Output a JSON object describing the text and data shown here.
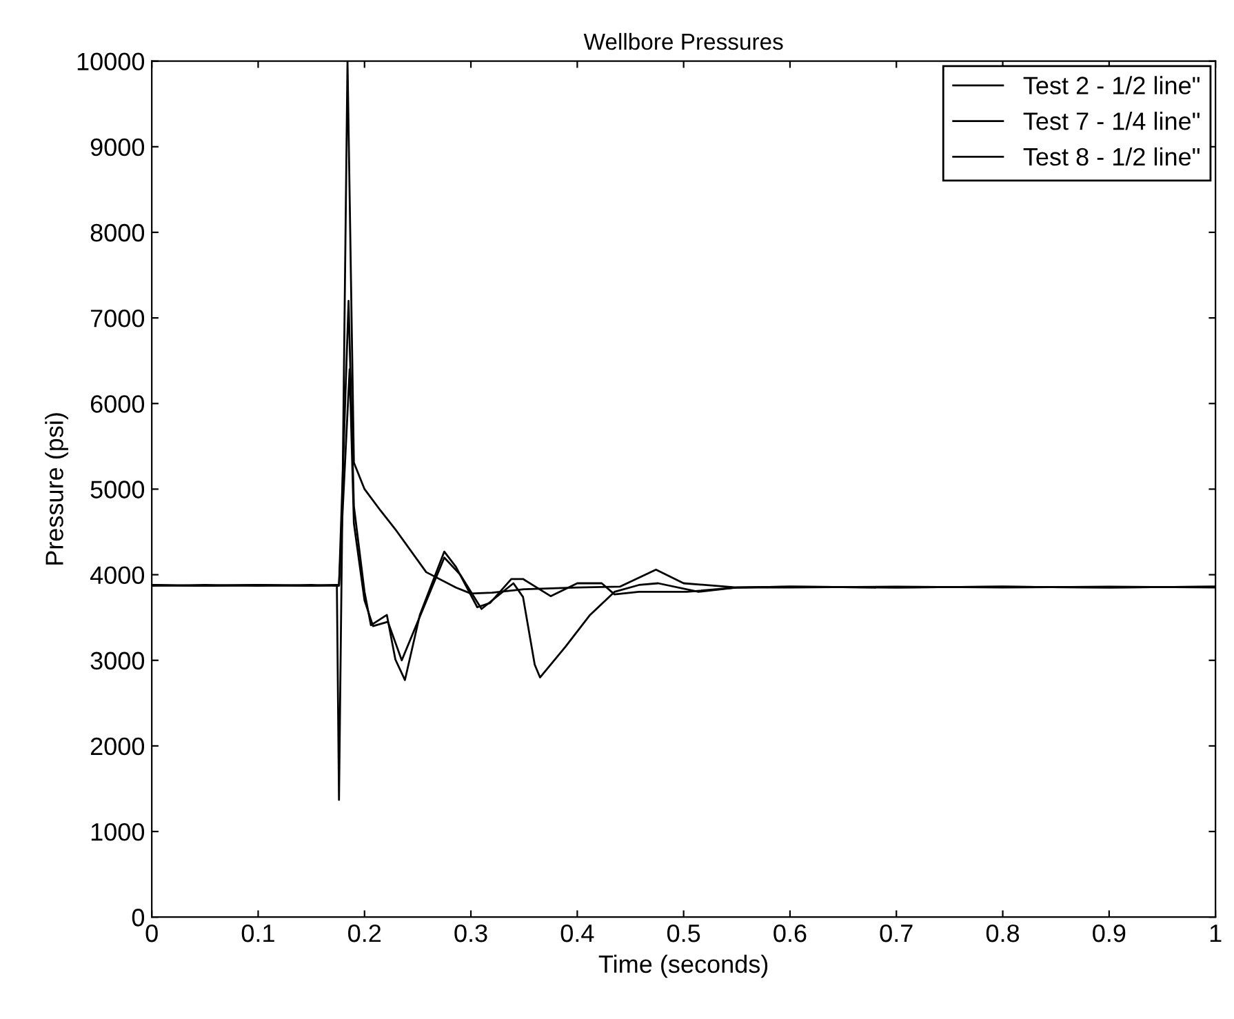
{
  "chart_data": {
    "type": "line",
    "title": "Wellbore Pressures",
    "xlabel": "Time (seconds)",
    "ylabel": "Pressure (psi)",
    "xlim": [
      0,
      1
    ],
    "ylim": [
      0,
      10000
    ],
    "xticks": [
      0,
      0.1,
      0.2,
      0.3,
      0.4,
      0.5,
      0.6,
      0.7,
      0.8,
      0.9,
      1
    ],
    "yticks": [
      0,
      1000,
      2000,
      3000,
      4000,
      5000,
      6000,
      7000,
      8000,
      9000,
      10000
    ],
    "grid": false,
    "legend": "top right",
    "line_style": "solid",
    "marker": "none",
    "series": [
      {
        "name": "Test 2 - 1/2 line\"",
        "color": "#000000",
        "x": [
          0,
          0.05,
          0.1,
          0.15,
          0.174,
          0.176,
          0.184,
          0.19,
          0.2,
          0.215,
          0.229,
          0.258,
          0.286,
          0.3,
          0.32,
          0.35,
          0.4,
          0.44,
          0.474,
          0.5,
          0.55,
          0.6,
          0.7,
          0.8,
          0.9,
          1
        ],
        "values": [
          3880,
          3870,
          3880,
          3870,
          3880,
          1370,
          10000,
          5310,
          5000,
          4750,
          4530,
          4030,
          3850,
          3780,
          3790,
          3830,
          3850,
          3860,
          4060,
          3900,
          3850,
          3860,
          3850,
          3860,
          3850,
          3860
        ]
      },
      {
        "name": "Test 7 - 1/4 line\"",
        "color": "#000000",
        "x": [
          0,
          0.05,
          0.1,
          0.15,
          0.176,
          0.185,
          0.19,
          0.2,
          0.206,
          0.221,
          0.229,
          0.238,
          0.252,
          0.275,
          0.286,
          0.306,
          0.318,
          0.338,
          0.349,
          0.375,
          0.4,
          0.423,
          0.435,
          0.458,
          0.503,
          0.55,
          0.6,
          0.7,
          0.8,
          0.9,
          1
        ],
        "values": [
          3870,
          3880,
          3870,
          3880,
          3870,
          7200,
          4800,
          3800,
          3410,
          3530,
          3010,
          2770,
          3530,
          4270,
          4090,
          3620,
          3670,
          3950,
          3950,
          3750,
          3900,
          3900,
          3770,
          3800,
          3800,
          3850,
          3850,
          3860,
          3850,
          3860,
          3850
        ]
      },
      {
        "name": "Test 8 - 1/2 line\"",
        "color": "#000000",
        "x": [
          0,
          0.05,
          0.1,
          0.15,
          0.176,
          0.186,
          0.19,
          0.2,
          0.208,
          0.222,
          0.235,
          0.25,
          0.275,
          0.29,
          0.31,
          0.34,
          0.349,
          0.36,
          0.365,
          0.389,
          0.412,
          0.435,
          0.458,
          0.476,
          0.514,
          0.55,
          0.6,
          0.7,
          0.8,
          0.9,
          1
        ],
        "values": [
          3880,
          3870,
          3880,
          3870,
          3880,
          6400,
          4600,
          3700,
          3400,
          3450,
          3000,
          3450,
          4200,
          4000,
          3600,
          3900,
          3740,
          2950,
          2800,
          3160,
          3530,
          3800,
          3880,
          3900,
          3800,
          3850,
          3860,
          3850,
          3860,
          3850,
          3860
        ]
      }
    ]
  }
}
